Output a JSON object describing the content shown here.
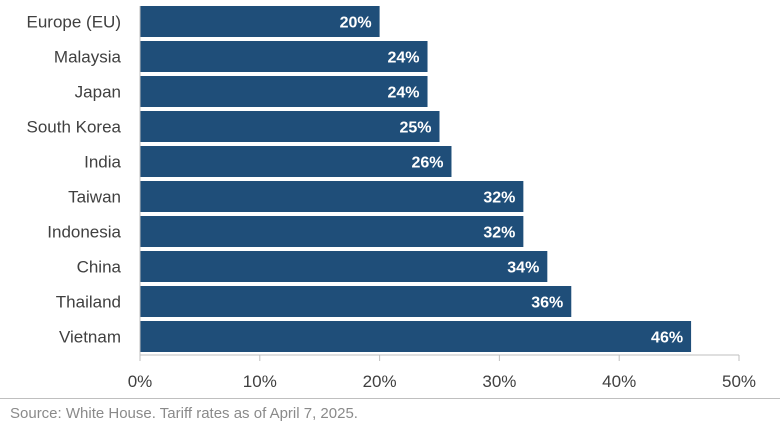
{
  "chart_data": {
    "type": "bar",
    "orientation": "horizontal",
    "categories": [
      "Europe (EU)",
      "Malaysia",
      "Japan",
      "South Korea",
      "India",
      "Taiwan",
      "Indonesia",
      "China",
      "Thailand",
      "Vietnam"
    ],
    "values": [
      20,
      24,
      24,
      25,
      26,
      32,
      32,
      34,
      36,
      46
    ],
    "value_labels": [
      "20%",
      "24%",
      "24%",
      "25%",
      "26%",
      "32%",
      "32%",
      "34%",
      "36%",
      "46%"
    ],
    "xlim": [
      0,
      50
    ],
    "xticks": [
      0,
      10,
      20,
      30,
      40,
      50
    ],
    "xtick_labels": [
      "0%",
      "10%",
      "20%",
      "30%",
      "40%",
      "50%"
    ],
    "bar_color": "#1f4e79",
    "grid": false,
    "legend": "none"
  },
  "footer": {
    "source": "Source: White House. Tariff rates as of April 7, 2025."
  }
}
